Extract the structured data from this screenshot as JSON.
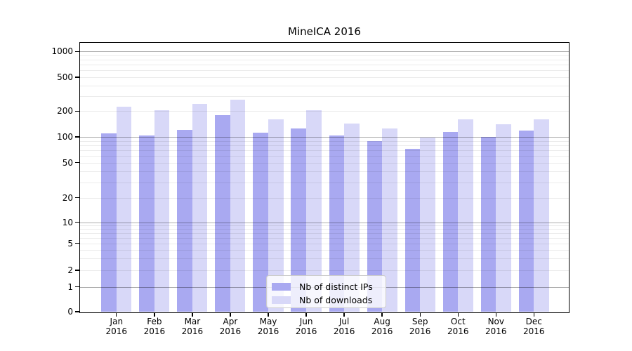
{
  "title": "MineICA 2016",
  "legend": {
    "items": [
      {
        "label": "Nb of distinct IPs",
        "color": "#a9a9f1"
      },
      {
        "label": "Nb of downloads",
        "color": "#d8d8f8"
      }
    ],
    "position": "lower center"
  },
  "chart_data": {
    "type": "bar",
    "categories": [
      "Jan",
      "Feb",
      "Mar",
      "Apr",
      "May",
      "Jun",
      "Jul",
      "Aug",
      "Sep",
      "Oct",
      "Nov",
      "Dec"
    ],
    "year_label": "2016",
    "series": [
      {
        "name": "Nb of distinct IPs",
        "color": "#a9a9f1",
        "values": [
          110,
          104,
          122,
          179,
          113,
          126,
          103,
          90,
          73,
          114,
          100,
          119
        ]
      },
      {
        "name": "Nb of downloads",
        "color": "#d8d8f8",
        "values": [
          225,
          205,
          242,
          274,
          160,
          204,
          143,
          125,
          98,
          160,
          140,
          162
        ]
      }
    ],
    "title": "MineICA 2016",
    "xlabel": "",
    "ylabel": "",
    "y_ticks": [
      0,
      1,
      2,
      5,
      10,
      20,
      50,
      100,
      200,
      500,
      1000
    ],
    "ylim": [
      0,
      1000
    ],
    "y_scale": "log-like",
    "grid": "horizontal, minor + major (at powers of 10)",
    "legend_position": "lower center"
  }
}
